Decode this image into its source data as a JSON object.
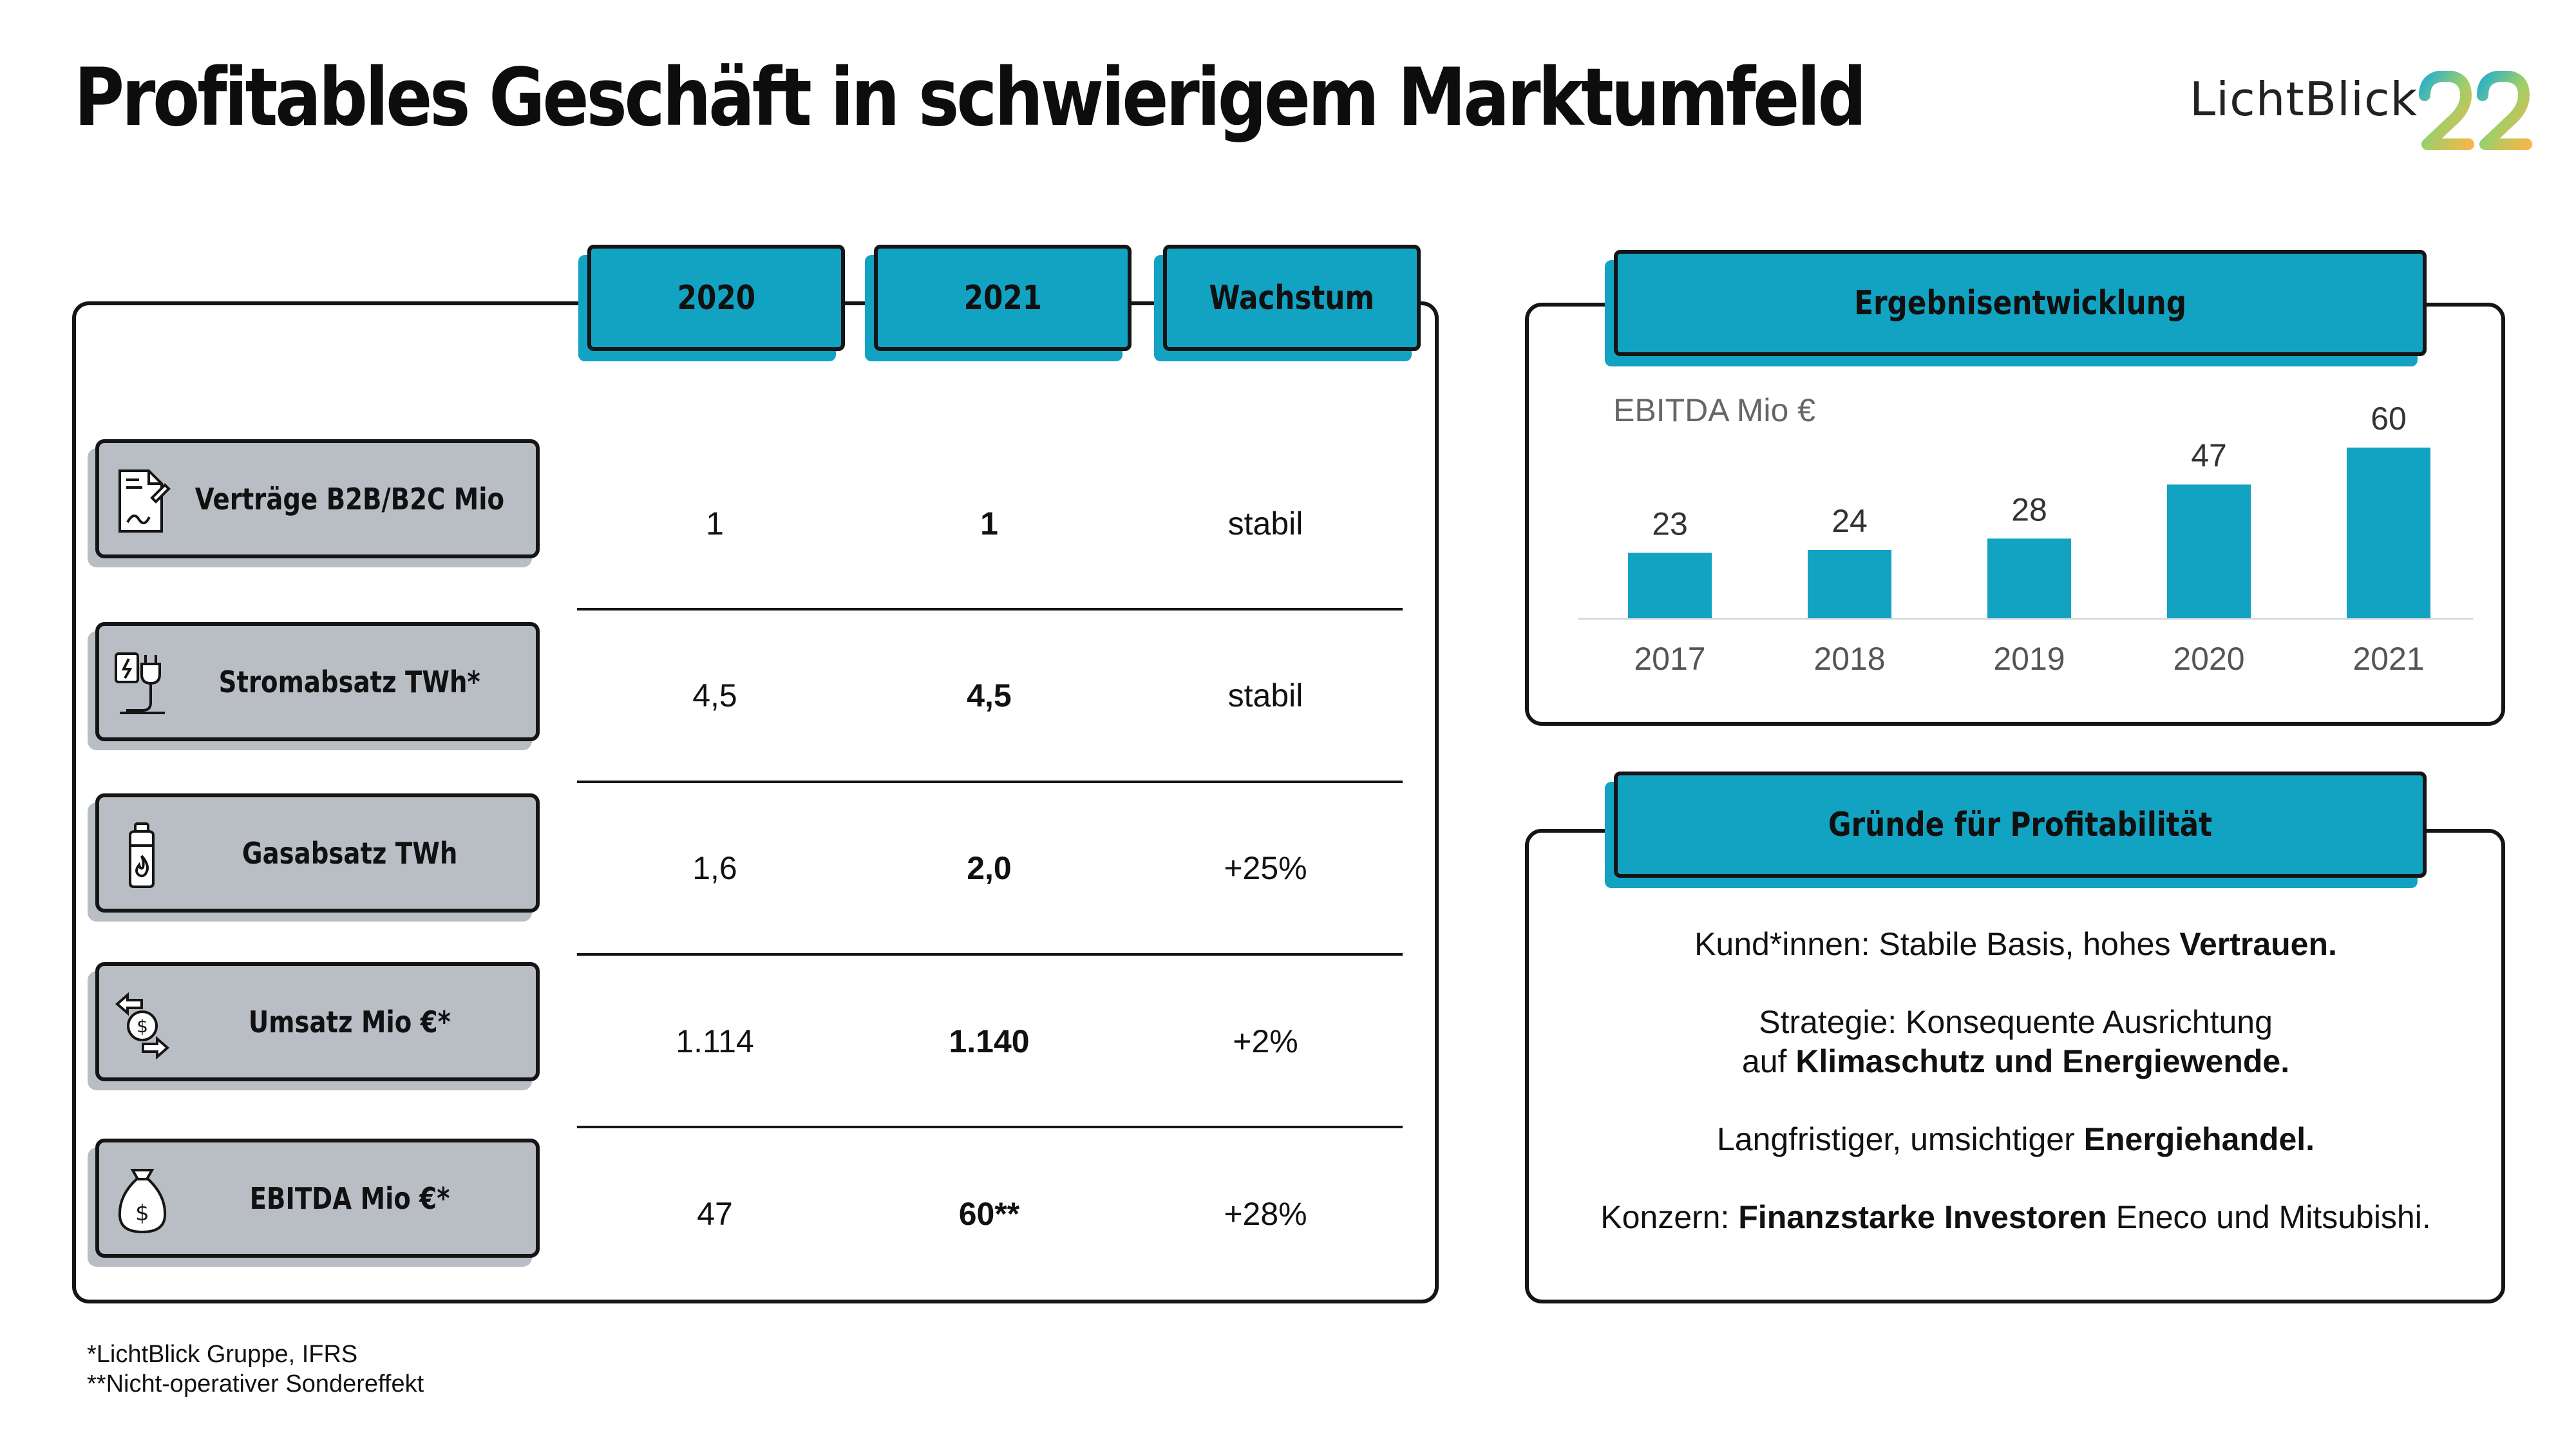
{
  "title": "Profitables Geschäft in schwierigem Marktumfeld",
  "logo": {
    "word": "LichtBlick",
    "number": "22"
  },
  "table": {
    "columns": [
      "2020",
      "2021",
      "Wachstum"
    ],
    "rows": [
      {
        "label": "Verträge B2B/B2C Mio",
        "icon": "contract-icon",
        "v2020": "1",
        "v2021": "1",
        "growth": "stabil"
      },
      {
        "label": "Stromabsatz TWh*",
        "icon": "power-plug-icon",
        "v2020": "4,5",
        "v2021": "4,5",
        "growth": "stabil"
      },
      {
        "label": "Gasabsatz TWh",
        "icon": "gas-bottle-icon",
        "v2020": "1,6",
        "v2021": "2,0",
        "growth": "+25%"
      },
      {
        "label": "Umsatz Mio €*",
        "icon": "money-exchange-icon",
        "v2020": "1.114",
        "v2021": "1.140",
        "growth": "+2%"
      },
      {
        "label": "EBITDA Mio €*",
        "icon": "money-bag-icon",
        "v2020": "47",
        "v2021": "60**",
        "growth": "+28%"
      }
    ]
  },
  "chart_panel": {
    "heading": "Ergebnisentwicklung"
  },
  "chart_data": {
    "type": "bar",
    "categories": [
      "2017",
      "2018",
      "2019",
      "2020",
      "2021"
    ],
    "values": [
      23,
      24,
      28,
      47,
      60
    ],
    "ylabel": "EBITDA Mio €",
    "ylim": [
      0,
      60
    ],
    "grid": false,
    "data_labels": true,
    "color": "#12a3c3"
  },
  "reasons": {
    "heading": "Gründe für Profitabilität",
    "line1_normal": "Kund*innen: Stabile Basis, hohes ",
    "line1_bold": "Vertrauen.",
    "line2_normal_a": "Strategie: Konsequente Ausrichtung",
    "line2_normal_b": "auf ",
    "line2_bold": "Klimaschutz und Energiewende.",
    "line3_normal": "Langfristiger, umsichtiger ",
    "line3_bold": "Energiehandel.",
    "line4_normal_a": "Konzern: ",
    "line4_bold": "Finanzstarke Investoren",
    "line4_normal_b": " Eneco und Mitsubishi."
  },
  "footnotes": [
    "*LichtBlick Gruppe, IFRS",
    "**Nicht-operativer Sondereffekt"
  ],
  "colors": {
    "accent": "#12a3c3",
    "label_gray": "#b9bdc4",
    "border": "#151515"
  }
}
